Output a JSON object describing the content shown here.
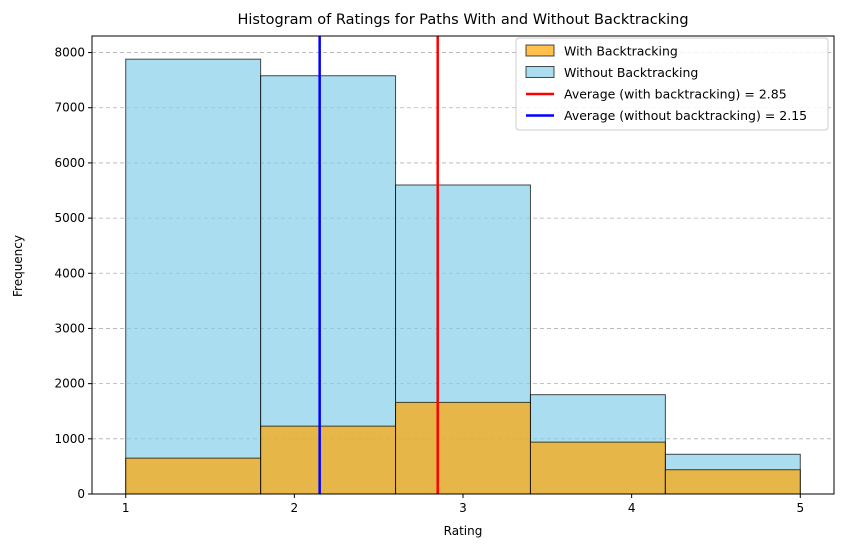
{
  "chart_data": {
    "type": "bar",
    "title": "Histogram of Ratings for Paths With and Without Backtracking",
    "xlabel": "Rating",
    "ylabel": "Frequency",
    "xlim": [
      0.8,
      5.2
    ],
    "ylim": [
      0,
      8300
    ],
    "xticks": [
      1,
      2,
      3,
      4,
      5
    ],
    "yticks": [
      0,
      1000,
      2000,
      3000,
      4000,
      5000,
      6000,
      7000,
      8000
    ],
    "bin_edges": [
      1.0,
      1.8,
      2.6,
      3.4,
      4.2,
      5.0
    ],
    "grid": "y-dashed",
    "legend_position": "top-right",
    "series": [
      {
        "name": "With Backtracking",
        "color": "#FFA500",
        "alpha": 0.7,
        "values": [
          650,
          1230,
          1660,
          940,
          440
        ]
      },
      {
        "name": "Without Backtracking",
        "color": "#87CEEB",
        "alpha": 0.7,
        "values": [
          7880,
          7580,
          5600,
          1800,
          720
        ]
      }
    ],
    "reference_lines": [
      {
        "name": "Average (with backtracking) = 2.85",
        "x": 2.85,
        "color": "#FF0000"
      },
      {
        "name": "Average (without backtracking) = 2.15",
        "x": 2.15,
        "color": "#0000FF"
      }
    ]
  }
}
